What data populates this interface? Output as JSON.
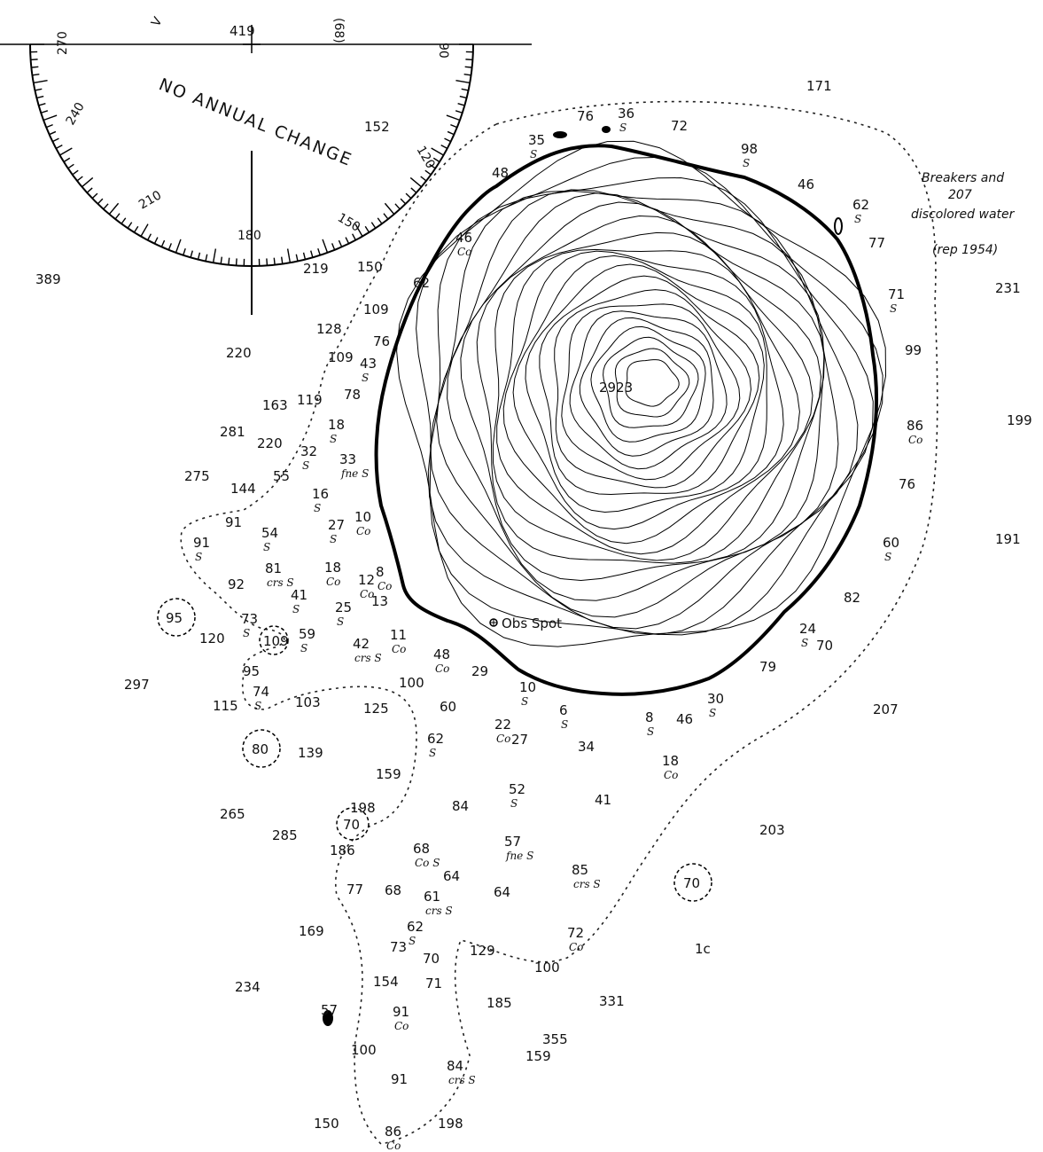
{
  "compass": {
    "caption": "NO ANNUAL CHANGE",
    "variation_label": "(68)",
    "v_label": "V",
    "degree_labels": [
      "270",
      "240",
      "210",
      "180",
      "150",
      "120",
      "90"
    ]
  },
  "summit_height": "2923",
  "observation_spot": "Obs Spot",
  "notes": {
    "breakers_line1": "Breakers and",
    "breakers_depth": "207",
    "breakers_line2": "discolored water",
    "reported": "(rep 1954)"
  },
  "circled_soundings": [
    "95",
    "109",
    "80",
    "70",
    "70"
  ],
  "soundings": [
    {
      "v": "419"
    },
    {
      "v": "152"
    },
    {
      "v": "171"
    },
    {
      "v": "76"
    },
    {
      "v": "36",
      "s": "S"
    },
    {
      "v": "72"
    },
    {
      "v": "35",
      "s": "S"
    },
    {
      "v": "98",
      "s": "S"
    },
    {
      "v": "48"
    },
    {
      "v": "46"
    },
    {
      "v": "62",
      "s": "S"
    },
    {
      "v": "77"
    },
    {
      "v": "46",
      "s": "Co"
    },
    {
      "v": "389"
    },
    {
      "v": "219"
    },
    {
      "v": "150"
    },
    {
      "v": "62"
    },
    {
      "v": "231"
    },
    {
      "v": "71",
      "s": "S"
    },
    {
      "v": "109"
    },
    {
      "v": "128"
    },
    {
      "v": "76"
    },
    {
      "v": "220"
    },
    {
      "v": "109"
    },
    {
      "v": "43",
      "s": "S"
    },
    {
      "v": "99"
    },
    {
      "v": "163"
    },
    {
      "v": "119"
    },
    {
      "v": "78"
    },
    {
      "v": "18",
      "s": "S"
    },
    {
      "v": "199"
    },
    {
      "v": "86",
      "s": "Co"
    },
    {
      "v": "281"
    },
    {
      "v": "220"
    },
    {
      "v": "32",
      "s": "S"
    },
    {
      "v": "33",
      "s": "fne S"
    },
    {
      "v": "275"
    },
    {
      "v": "144"
    },
    {
      "v": "55"
    },
    {
      "v": "76"
    },
    {
      "v": "16",
      "s": "S"
    },
    {
      "v": "91"
    },
    {
      "v": "54",
      "s": "S"
    },
    {
      "v": "27",
      "s": "S"
    },
    {
      "v": "10",
      "s": "Co"
    },
    {
      "v": "91",
      "s": "S"
    },
    {
      "v": "191"
    },
    {
      "v": "60",
      "s": "S"
    },
    {
      "v": "81",
      "s": "crs S"
    },
    {
      "v": "18",
      "s": "Co"
    },
    {
      "v": "8",
      "s": "Co"
    },
    {
      "v": "92"
    },
    {
      "v": "12",
      "s": "Co"
    },
    {
      "v": "41",
      "s": "S"
    },
    {
      "v": "13"
    },
    {
      "v": "82"
    },
    {
      "v": "25",
      "s": "S"
    },
    {
      "v": "73",
      "s": "S"
    },
    {
      "v": "120"
    },
    {
      "v": "59",
      "s": "S"
    },
    {
      "v": "42",
      "s": "crs S"
    },
    {
      "v": "11",
      "s": "Co"
    },
    {
      "v": "24",
      "s": "S"
    },
    {
      "v": "70"
    },
    {
      "v": "48",
      "s": "Co"
    },
    {
      "v": "29"
    },
    {
      "v": "79"
    },
    {
      "v": "95"
    },
    {
      "v": "297"
    },
    {
      "v": "74",
      "s": "S"
    },
    {
      "v": "115"
    },
    {
      "v": "103"
    },
    {
      "v": "125"
    },
    {
      "v": "100"
    },
    {
      "v": "60"
    },
    {
      "v": "10",
      "s": "S"
    },
    {
      "v": "6",
      "s": "S"
    },
    {
      "v": "8",
      "s": "S"
    },
    {
      "v": "46"
    },
    {
      "v": "30",
      "s": "S"
    },
    {
      "v": "207"
    },
    {
      "v": "139"
    },
    {
      "v": "62",
      "s": "S"
    },
    {
      "v": "22",
      "s": "Co"
    },
    {
      "v": "27"
    },
    {
      "v": "34"
    },
    {
      "v": "18",
      "s": "Co"
    },
    {
      "v": "159"
    },
    {
      "v": "52",
      "s": "S"
    },
    {
      "v": "41"
    },
    {
      "v": "265"
    },
    {
      "v": "198"
    },
    {
      "v": "84"
    },
    {
      "v": "285"
    },
    {
      "v": "203"
    },
    {
      "v": "186"
    },
    {
      "v": "68",
      "s": "Co S"
    },
    {
      "v": "57",
      "s": "fne S"
    },
    {
      "v": "85",
      "s": "crs S"
    },
    {
      "v": "77"
    },
    {
      "v": "68"
    },
    {
      "v": "64"
    },
    {
      "v": "64"
    },
    {
      "v": "61",
      "s": "crs S"
    },
    {
      "v": "169"
    },
    {
      "v": "62",
      "s": "S"
    },
    {
      "v": "72",
      "s": "Co"
    },
    {
      "v": "1c"
    },
    {
      "v": "73"
    },
    {
      "v": "70"
    },
    {
      "v": "129"
    },
    {
      "v": "100"
    },
    {
      "v": "234"
    },
    {
      "v": "154"
    },
    {
      "v": "71"
    },
    {
      "v": "185"
    },
    {
      "v": "331"
    },
    {
      "v": "57"
    },
    {
      "v": "91",
      "s": "Co"
    },
    {
      "v": "355"
    },
    {
      "v": "100"
    },
    {
      "v": "159"
    },
    {
      "v": "91"
    },
    {
      "v": "84",
      "s": "crs S"
    },
    {
      "v": "150"
    },
    {
      "v": "86",
      "s": "Co"
    },
    {
      "v": "198"
    }
  ]
}
